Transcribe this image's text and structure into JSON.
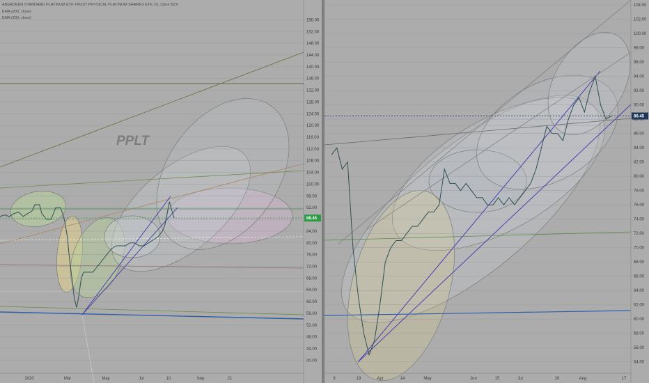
{
  "left_header": {
    "title": "ABERDEEN STANDARD PLATINUM ETF TRUST PHYSICAL PLATINUM SHARES ETF, 1h, Cboe BZX",
    "indicators": [
      "EMA (200, close)",
      "EMA (200, close)"
    ]
  },
  "watermark": "PPLT",
  "colors": {
    "background": "#acacac",
    "price_line": "#2f4f4f",
    "trend_purple": "#4b3fb0",
    "trend_blue": "#2e5fa8",
    "last_price_green": "#2e9a44",
    "last_price_navy": "#1d3557",
    "ellipse_fill": "#c7ccd2",
    "green_zone": "#b6d39a",
    "yellow_zone": "#e3d28b",
    "pink_zone": "#d9b7d8"
  },
  "chart_data": [
    {
      "type": "line",
      "pane": "left",
      "title": "ABERDEEN STANDARD PLATINUM ETF TRUST PHYSICAL PLATINUM SHARES ETF, 1h, Cboe BZX",
      "y_axis_ticks": [
        "156.00",
        "152.00",
        "148.00",
        "144.00",
        "140.00",
        "136.00",
        "132.00",
        "128.00",
        "124.00",
        "120.00",
        "116.00",
        "112.00",
        "108.00",
        "104.00",
        "100.00",
        "96.00",
        "92.00",
        "88.00",
        "84.00",
        "80.00",
        "76.00",
        "72.00",
        "68.00",
        "64.00",
        "60.00",
        "56.00",
        "52.00",
        "48.00",
        "44.00",
        "40.00"
      ],
      "x_axis_ticks": [
        "2020",
        "Mar",
        "May",
        "Jul",
        "10",
        "Sep",
        "21"
      ],
      "ylim": [
        37,
        158
      ],
      "last_price": "88.45",
      "series": [
        {
          "x": [
            0,
            4,
            8,
            12,
            16,
            20,
            24,
            28,
            30,
            34,
            36,
            38,
            40,
            44,
            48,
            52,
            54,
            56,
            58,
            60,
            62,
            64,
            66,
            68,
            70,
            72,
            74,
            76,
            80,
            84,
            88,
            92,
            96,
            100,
            104,
            108,
            112,
            116,
            120,
            124,
            128,
            132,
            136,
            140,
            142,
            144,
            146,
            148,
            150
          ],
          "values": [
            89,
            89.5,
            89,
            90,
            90.5,
            89,
            90,
            91,
            93,
            93,
            90,
            89,
            88,
            88,
            92,
            92,
            90,
            87,
            82,
            74,
            68,
            61,
            58,
            62,
            68,
            70,
            70,
            70,
            70,
            72,
            74,
            76,
            78,
            79,
            79,
            79,
            80,
            80,
            79,
            79,
            80,
            81,
            82,
            84,
            86,
            90,
            94,
            91,
            88.45
          ]
        }
      ]
    },
    {
      "type": "line",
      "pane": "right",
      "y_axis_ticks": [
        "104.00",
        "102.00",
        "100.00",
        "98.00",
        "96.00",
        "94.00",
        "92.00",
        "90.00",
        "88.00",
        "86.00",
        "84.00",
        "82.00",
        "80.00",
        "78.00",
        "76.00",
        "74.00",
        "72.00",
        "70.00",
        "68.00",
        "66.00",
        "64.00",
        "62.00",
        "60.00",
        "58.00",
        "56.00",
        "54.00"
      ],
      "x_axis_ticks": [
        "9",
        "19",
        "Apr",
        "14",
        "May",
        "Jun",
        "15",
        "Jul",
        "20",
        "Aug",
        "17"
      ],
      "ylim": [
        53,
        104.5
      ],
      "last_price": "88.45",
      "series": [
        {
          "x": [
            0,
            2,
            4,
            6,
            8,
            10,
            12,
            14,
            16,
            18,
            20,
            22,
            24,
            26,
            28,
            30,
            32,
            34,
            36,
            38,
            40,
            42,
            44,
            46,
            48,
            50,
            52,
            54,
            56,
            58,
            60,
            62,
            64,
            66,
            68,
            70,
            72,
            74,
            76,
            78,
            80,
            82,
            84,
            86,
            88,
            90,
            92,
            94,
            96,
            98,
            100,
            102,
            104
          ],
          "values": [
            83,
            84,
            81,
            82,
            70,
            63,
            58,
            55,
            57,
            62,
            68,
            70,
            71,
            71,
            72,
            73,
            73,
            74,
            75,
            75,
            76,
            81,
            79,
            79,
            78,
            79,
            78,
            77,
            77,
            76,
            76,
            77,
            76,
            77,
            76,
            77,
            78,
            79,
            81,
            84,
            87,
            86,
            86,
            85,
            88,
            90,
            91,
            89,
            92,
            94,
            90,
            88,
            88.45
          ]
        }
      ]
    }
  ]
}
